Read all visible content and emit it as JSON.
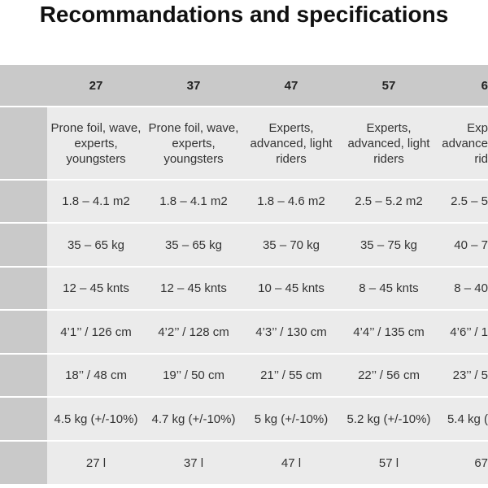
{
  "title": "Recommandations and specifications",
  "table": {
    "header": [
      "27",
      "37",
      "47",
      "57",
      "6"
    ],
    "rows": [
      [
        "Prone foil, wave, experts, youngsters",
        "Prone foil, wave, experts, youngsters",
        "Experts, advanced, light riders",
        "Experts, advanced, light riders",
        "Exp\nadvance\nrid"
      ],
      [
        "1.8 – 4.1 m2",
        "1.8 – 4.1 m2",
        "1.8 – 4.6 m2",
        "2.5 – 5.2 m2",
        "2.5 – 5"
      ],
      [
        "35 – 65 kg",
        "35 – 65 kg",
        "35 – 70 kg",
        "35 – 75 kg",
        "40 – 7"
      ],
      [
        "12 – 45 knts",
        "12 – 45 knts",
        "10 – 45 knts",
        "8 – 45 knts",
        "8 – 40"
      ],
      [
        "4’1’’ / 126 cm",
        "4’2’’ / 128 cm",
        "4’3’’ / 130 cm",
        "4’4’’ / 135 cm",
        "4’6’’ / 1"
      ],
      [
        "18’’ / 48 cm",
        "19’’ / 50 cm",
        "21’’ / 55 cm",
        "22’’ / 56 cm",
        "23’’ / 5"
      ],
      [
        "4.5 kg (+/-10%)",
        "4.7 kg (+/-10%)",
        "5 kg (+/-10%)",
        "5.2 kg (+/-10%)",
        "5.4 kg ("
      ],
      [
        "27 l",
        "37 l",
        "47 l",
        "57 l",
        "67"
      ]
    ]
  }
}
